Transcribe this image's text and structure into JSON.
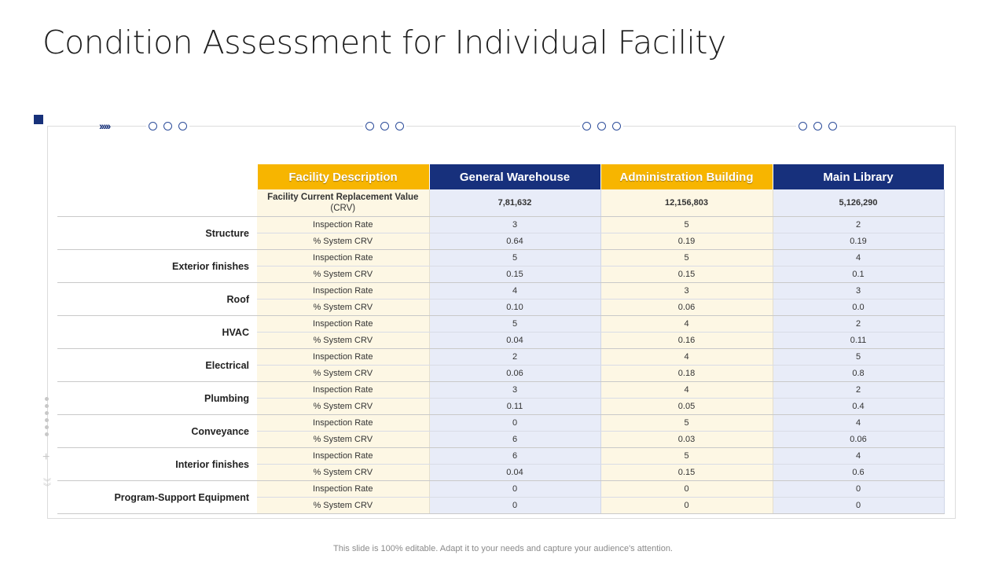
{
  "title": "Condition Assessment for Individual Facility",
  "header": {
    "facility_description": "Facility Description",
    "columns": [
      "General Warehouse",
      "Administration Building",
      "Main Library"
    ]
  },
  "crv_row": {
    "label_main": "Facility Current Replacement Value",
    "label_abbr": "(CRV)",
    "values": [
      "7,81,632",
      "12,156,803",
      "5,126,290"
    ]
  },
  "metric_labels": {
    "rate": "Inspection Rate",
    "crv": "% System CRV"
  },
  "categories": [
    {
      "name": "Structure",
      "rate": [
        "3",
        "5",
        "2"
      ],
      "crv": [
        "0.64",
        "0.19",
        "0.19"
      ]
    },
    {
      "name": "Exterior finishes",
      "rate": [
        "5",
        "5",
        "4"
      ],
      "crv": [
        "0.15",
        "0.15",
        "0.1"
      ]
    },
    {
      "name": "Roof",
      "rate": [
        "4",
        "3",
        "3"
      ],
      "crv": [
        "0.10",
        "0.06",
        "0.0"
      ]
    },
    {
      "name": "HVAC",
      "rate": [
        "5",
        "4",
        "2"
      ],
      "crv": [
        "0.04",
        "0.16",
        "0.11"
      ]
    },
    {
      "name": "Electrical",
      "rate": [
        "2",
        "4",
        "5"
      ],
      "crv": [
        "0.06",
        "0.18",
        "0.8"
      ]
    },
    {
      "name": "Plumbing",
      "rate": [
        "3",
        "4",
        "2"
      ],
      "crv": [
        "0.11",
        "0.05",
        "0.4"
      ]
    },
    {
      "name": "Conveyance",
      "rate": [
        "0",
        "5",
        "4"
      ],
      "crv": [
        "6",
        "0.03",
        "0.06"
      ]
    },
    {
      "name": "Interior finishes",
      "rate": [
        "6",
        "5",
        "4"
      ],
      "crv": [
        "0.04",
        "0.15",
        "0.6"
      ]
    },
    {
      "name": "Program-Support Equipment",
      "rate": [
        "0",
        "0",
        "0"
      ],
      "crv": [
        "0",
        "0",
        "0"
      ]
    }
  ],
  "footer": "This slide is 100% editable. Adapt it to your needs and capture your audience's attention.",
  "colors": {
    "gold": "#f7b500",
    "navy": "#17307c",
    "cream": "#fdf7e4",
    "light_blue": "#e8ecf8"
  }
}
